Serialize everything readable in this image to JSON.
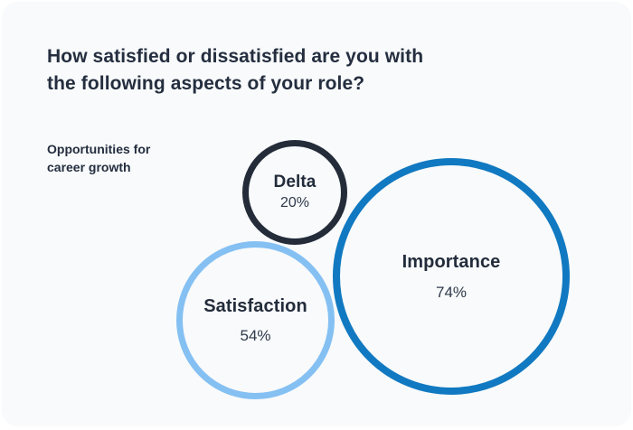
{
  "card": {
    "background_color": "#f8fafb"
  },
  "question": {
    "title": "How satisfied or dissatisfied are you with the following aspects of your role?",
    "title_line1": "How satisfied or dissatisfied are you with",
    "title_line2": "the following aspects of your role?"
  },
  "aspect": {
    "label": "Opportunities for career growth",
    "line1": "Opportunities for",
    "line2": "career growth"
  },
  "bubbles": {
    "delta": {
      "label": "Delta",
      "value": "20%",
      "color": "#242c3a"
    },
    "satisfaction": {
      "label": "Satisfaction",
      "value": "54%",
      "color": "#85c0f3"
    },
    "importance": {
      "label": "Importance",
      "value": "74%",
      "color": "#1179c1"
    }
  },
  "chart_data": {
    "type": "bubble",
    "title": "How satisfied or dissatisfied are you with the following aspects of your role?",
    "category": "Opportunities for career growth",
    "series": [
      {
        "name": "Delta",
        "value": 20,
        "unit": "%",
        "color": "#242c3a"
      },
      {
        "name": "Satisfaction",
        "value": 54,
        "unit": "%",
        "color": "#85c0f3"
      },
      {
        "name": "Importance",
        "value": 74,
        "unit": "%",
        "color": "#1179c1"
      }
    ],
    "legend": "none",
    "axes": "none",
    "layout_hint": "three outlined circles sized by percentage, overlapping cluster right of category label"
  }
}
